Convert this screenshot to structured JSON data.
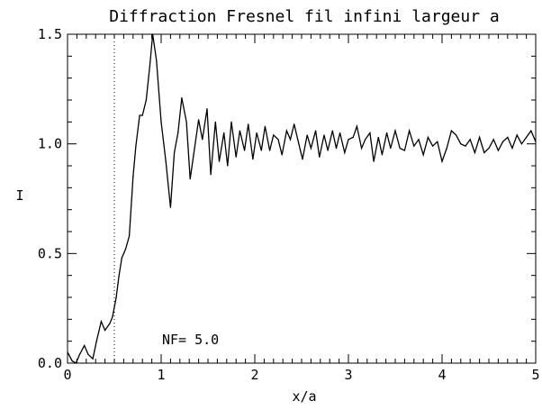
{
  "chart_data": {
    "type": "line",
    "title": "Diffraction Fresnel fil infini largeur a",
    "xlabel": "x/a",
    "ylabel": "I",
    "xlim": [
      0,
      5
    ],
    "ylim": [
      0,
      1.5
    ],
    "x_ticks": [
      "0",
      "1",
      "2",
      "3",
      "4",
      "5"
    ],
    "y_ticks": [
      "0.0",
      "0.5",
      "1.0",
      "1.5"
    ],
    "annotation": "NF= 5.0",
    "grid": false,
    "reference_line": {
      "x": 0.5,
      "style": "dotted"
    },
    "series": [
      {
        "points": [
          [
            0.0,
            0.05
          ],
          [
            0.05,
            0.01
          ],
          [
            0.09,
            0.0
          ],
          [
            0.13,
            0.04
          ],
          [
            0.18,
            0.08
          ],
          [
            0.22,
            0.04
          ],
          [
            0.27,
            0.02
          ],
          [
            0.31,
            0.1
          ],
          [
            0.36,
            0.19
          ],
          [
            0.4,
            0.15
          ],
          [
            0.45,
            0.18
          ],
          [
            0.48,
            0.21
          ],
          [
            0.52,
            0.3
          ],
          [
            0.55,
            0.4
          ],
          [
            0.58,
            0.48
          ],
          [
            0.62,
            0.52
          ],
          [
            0.66,
            0.58
          ],
          [
            0.7,
            0.85
          ],
          [
            0.73,
            0.99
          ],
          [
            0.77,
            1.13
          ],
          [
            0.8,
            1.13
          ],
          [
            0.84,
            1.2
          ],
          [
            0.88,
            1.36
          ],
          [
            0.91,
            1.5
          ],
          [
            0.95,
            1.38
          ],
          [
            1.0,
            1.1
          ],
          [
            1.05,
            0.92
          ],
          [
            1.1,
            0.71
          ],
          [
            1.14,
            0.96
          ],
          [
            1.18,
            1.05
          ],
          [
            1.22,
            1.21
          ],
          [
            1.27,
            1.1
          ],
          [
            1.31,
            0.84
          ],
          [
            1.35,
            0.96
          ],
          [
            1.4,
            1.11
          ],
          [
            1.44,
            1.02
          ],
          [
            1.49,
            1.16
          ],
          [
            1.53,
            0.86
          ],
          [
            1.58,
            1.1
          ],
          [
            1.62,
            0.92
          ],
          [
            1.67,
            1.05
          ],
          [
            1.71,
            0.9
          ],
          [
            1.75,
            1.1
          ],
          [
            1.8,
            0.94
          ],
          [
            1.84,
            1.06
          ],
          [
            1.89,
            0.97
          ],
          [
            1.93,
            1.09
          ],
          [
            1.98,
            0.93
          ],
          [
            2.02,
            1.05
          ],
          [
            2.07,
            0.97
          ],
          [
            2.11,
            1.08
          ],
          [
            2.16,
            0.97
          ],
          [
            2.2,
            1.04
          ],
          [
            2.25,
            1.02
          ],
          [
            2.29,
            0.95
          ],
          [
            2.34,
            1.06
          ],
          [
            2.38,
            1.02
          ],
          [
            2.42,
            1.09
          ],
          [
            2.47,
            1.0
          ],
          [
            2.51,
            0.93
          ],
          [
            2.56,
            1.04
          ],
          [
            2.6,
            0.98
          ],
          [
            2.65,
            1.06
          ],
          [
            2.69,
            0.94
          ],
          [
            2.74,
            1.04
          ],
          [
            2.78,
            0.97
          ],
          [
            2.83,
            1.06
          ],
          [
            2.87,
            0.98
          ],
          [
            2.91,
            1.05
          ],
          [
            2.96,
            0.96
          ],
          [
            3.0,
            1.02
          ],
          [
            3.05,
            1.03
          ],
          [
            3.09,
            1.08
          ],
          [
            3.14,
            0.98
          ],
          [
            3.18,
            1.02
          ],
          [
            3.23,
            1.05
          ],
          [
            3.27,
            0.92
          ],
          [
            3.32,
            1.03
          ],
          [
            3.36,
            0.95
          ],
          [
            3.41,
            1.05
          ],
          [
            3.45,
            0.98
          ],
          [
            3.5,
            1.06
          ],
          [
            3.55,
            0.98
          ],
          [
            3.6,
            0.97
          ],
          [
            3.65,
            1.06
          ],
          [
            3.7,
            0.99
          ],
          [
            3.75,
            1.02
          ],
          [
            3.8,
            0.95
          ],
          [
            3.85,
            1.03
          ],
          [
            3.9,
            0.99
          ],
          [
            3.95,
            1.01
          ],
          [
            4.0,
            0.92
          ],
          [
            4.05,
            0.98
          ],
          [
            4.1,
            1.06
          ],
          [
            4.15,
            1.04
          ],
          [
            4.2,
            1.0
          ],
          [
            4.25,
            0.99
          ],
          [
            4.3,
            1.02
          ],
          [
            4.35,
            0.96
          ],
          [
            4.4,
            1.03
          ],
          [
            4.45,
            0.96
          ],
          [
            4.5,
            0.98
          ],
          [
            4.55,
            1.02
          ],
          [
            4.6,
            0.97
          ],
          [
            4.65,
            1.01
          ],
          [
            4.7,
            1.03
          ],
          [
            4.75,
            0.98
          ],
          [
            4.8,
            1.04
          ],
          [
            4.85,
            1.0
          ],
          [
            4.9,
            1.03
          ],
          [
            4.95,
            1.06
          ],
          [
            5.0,
            1.01
          ]
        ]
      }
    ]
  }
}
